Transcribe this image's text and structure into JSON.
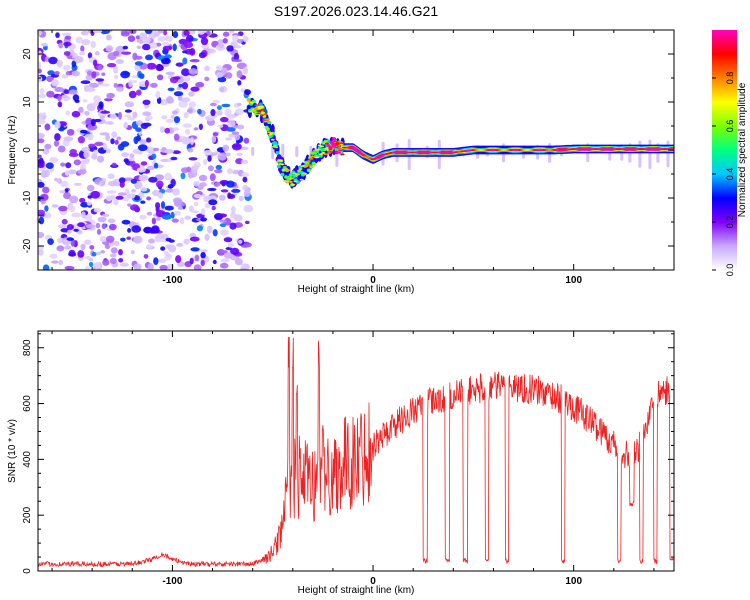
{
  "figure_title": "S197.2026.023.14.46.G21",
  "colorbar": {
    "label": "Normalized spectral amplitude",
    "ticks": [
      "0.0",
      "0.2",
      "0.4",
      "0.6",
      "0.8"
    ],
    "tick_values": [
      0.0,
      0.2,
      0.4,
      0.6,
      0.8
    ],
    "range": [
      0.0,
      1.0
    ],
    "colormap": [
      "#ffffff",
      "#c8a8ff",
      "#8000ff",
      "#0000ff",
      "#00c8ff",
      "#00ff80",
      "#80ff00",
      "#ffff00",
      "#ff8000",
      "#ff0000",
      "#ff00c0"
    ]
  },
  "chart_data": [
    {
      "type": "heatmap",
      "title": "S197.2026.023.14.46.G21",
      "xlabel": "Height of straight line (km)",
      "ylabel": "Frequency (Hz)",
      "xlim": [
        -167,
        150
      ],
      "ylim": [
        -25,
        25
      ],
      "xticks": [
        -100,
        0,
        100
      ],
      "xtick_labels": [
        "-100",
        "0",
        "100"
      ],
      "yticks": [
        -20,
        -10,
        0,
        10,
        20
      ],
      "ytick_labels": [
        "-20",
        "-10",
        "0",
        "10",
        "20"
      ],
      "noise_region_x": [
        -167,
        -62
      ],
      "trace": {
        "x": [
          -62,
          -57,
          -54,
          -50,
          -47,
          -44,
          -40,
          -36,
          -32,
          -28,
          -24,
          -20,
          -15,
          -10,
          -5,
          0,
          5,
          10,
          20,
          30,
          40,
          50,
          60,
          70,
          80,
          90,
          100,
          110,
          120,
          130,
          140,
          150
        ],
        "freq": [
          9,
          9,
          7,
          3,
          -2,
          -5,
          -6,
          -5,
          -3,
          -1,
          0.5,
          1,
          0.5,
          0.5,
          -1,
          -2,
          -1,
          -0.5,
          -0.5,
          -0.5,
          -0.5,
          0,
          0,
          0,
          0,
          0,
          0.2,
          0.2,
          0.2,
          0.2,
          0.2,
          0.2
        ],
        "amplitude": [
          0.5,
          0.6,
          0.4,
          0.35,
          0.3,
          0.3,
          0.35,
          0.35,
          0.35,
          0.4,
          0.5,
          0.95,
          0.85,
          0.9,
          0.8,
          0.6,
          0.8,
          0.9,
          0.9,
          0.9,
          0.9,
          0.5,
          0.55,
          0.55,
          0.5,
          0.7,
          0.95,
          0.95,
          0.9,
          0.85,
          0.95,
          0.9
        ]
      },
      "vertical_streaks_x": [
        -60,
        -50,
        -45,
        -38,
        -31,
        -26,
        -18,
        5,
        12,
        18,
        27,
        33,
        45,
        52,
        57,
        65,
        75,
        82,
        88,
        94,
        107,
        118,
        124,
        128,
        133,
        138,
        142,
        147
      ]
    },
    {
      "type": "line",
      "xlabel": "Height of straight line (km)",
      "ylabel": "SNR (10 * v/v)",
      "xlim": [
        -167,
        150
      ],
      "ylim": [
        0,
        860
      ],
      "xticks": [
        -100,
        0,
        100
      ],
      "xtick_labels": [
        "-100",
        "0",
        "100"
      ],
      "yticks": [
        0,
        200,
        400,
        600,
        800
      ],
      "ytick_labels": [
        "0",
        "200",
        "400",
        "600",
        "800"
      ],
      "line_color": "#ee2222",
      "series": [
        {
          "name": "SNR",
          "envelope_x": [
            -167,
            -120,
            -110,
            -105,
            -100,
            -90,
            -60,
            -52,
            -48,
            -45,
            -42,
            -38,
            -35,
            -30,
            -25,
            -20,
            -15,
            -10,
            -5,
            0,
            10,
            20,
            30,
            40,
            50,
            60,
            70,
            80,
            90,
            100,
            110,
            120,
            125,
            128,
            131,
            134,
            137,
            140,
            143,
            146,
            150
          ],
          "envelope_y": [
            25,
            25,
            42,
            62,
            40,
            25,
            25,
            50,
            95,
            180,
            300,
            340,
            330,
            310,
            320,
            350,
            380,
            390,
            420,
            450,
            520,
            575,
            610,
            630,
            650,
            660,
            660,
            650,
            630,
            590,
            530,
            455,
            430,
            390,
            420,
            480,
            540,
            590,
            640,
            650,
            600
          ],
          "spikes": [
            {
              "x": -42,
              "peak": 850
            },
            {
              "x": -40,
              "peak": 850
            },
            {
              "x": -38,
              "peak": 730
            },
            {
              "x": -27,
              "peak": 845
            },
            {
              "x": -25,
              "peak": 580
            }
          ],
          "dropouts": [
            {
              "x_from": 25,
              "x_to": 27,
              "floor": 25
            },
            {
              "x_from": 36,
              "x_to": 38,
              "floor": 25
            },
            {
              "x_from": 45,
              "x_to": 47,
              "floor": 25
            },
            {
              "x_from": 56,
              "x_to": 57.5,
              "floor": 25
            },
            {
              "x_from": 66,
              "x_to": 67.5,
              "floor": 25
            },
            {
              "x_from": 94,
              "x_to": 95.5,
              "floor": 25
            },
            {
              "x_from": 122,
              "x_to": 123.5,
              "floor": 25
            },
            {
              "x_from": 128,
              "x_to": 130,
              "floor": 230
            },
            {
              "x_from": 133,
              "x_to": 134.5,
              "floor": 25
            },
            {
              "x_from": 140,
              "x_to": 141.5,
              "floor": 25
            },
            {
              "x_from": 148,
              "x_to": 150,
              "floor": 30
            }
          ]
        }
      ]
    }
  ]
}
